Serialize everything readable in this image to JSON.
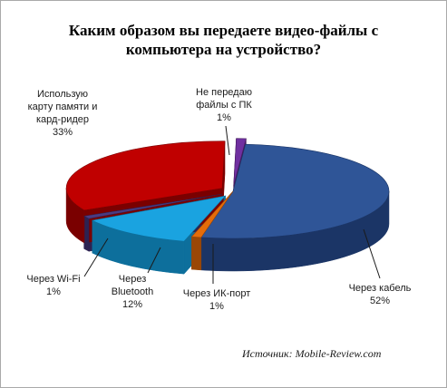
{
  "chart_data": {
    "type": "pie",
    "title_lines": [
      "Каким образом вы передаете видео-файлы с",
      "компьютера на устройство?"
    ],
    "slices": [
      {
        "label_lines": [
          "Через кабель"
        ],
        "pct_text": "52%",
        "value": 52,
        "color": "#2f5597",
        "dark": "#1b3566",
        "explode": 0
      },
      {
        "label_lines": [
          "Через ИК-порт"
        ],
        "pct_text": "1%",
        "value": 1,
        "color": "#e46c0a",
        "dark": "#9a4706",
        "explode": 0
      },
      {
        "label_lines": [
          "Через",
          "Bluetooth"
        ],
        "pct_text": "12%",
        "value": 12,
        "color": "#1aa3e0",
        "dark": "#0d6f9c",
        "explode": 14
      },
      {
        "label_lines": [
          "Через Wi-Fi"
        ],
        "pct_text": "1%",
        "value": 1,
        "color": "#4b3b82",
        "dark": "#2d2352",
        "explode": 14
      },
      {
        "label_lines": [
          "Использую",
          "карту памяти и",
          "кард-ридер"
        ],
        "pct_text": "33%",
        "value": 33,
        "color": "#c00000",
        "dark": "#7a0000",
        "explode": 14
      },
      {
        "label_lines": [
          "Не передаю",
          "файлы с ПК"
        ],
        "pct_text": "1%",
        "value": 1,
        "color": "#7030a0",
        "dark": "#45195f",
        "explode": 14
      }
    ],
    "source": "Источник: Mobile-Review.com"
  }
}
